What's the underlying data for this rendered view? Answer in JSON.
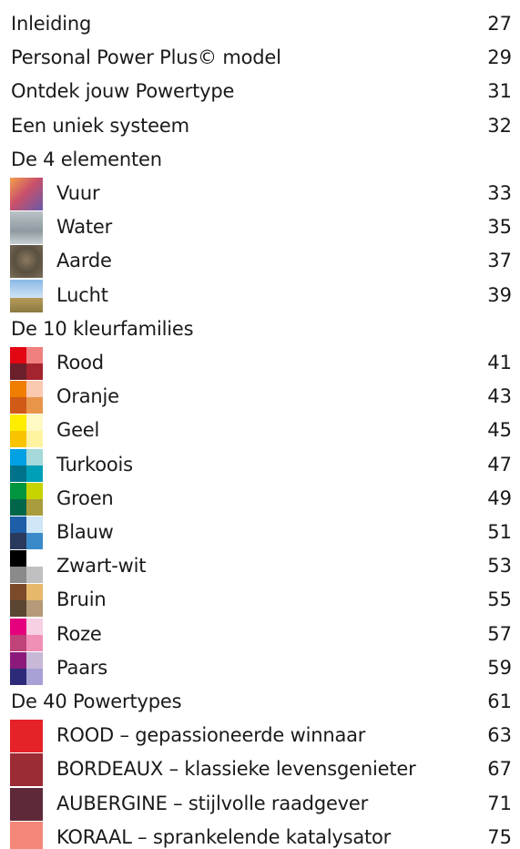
{
  "entries": [
    {
      "label": "Inleiding",
      "page": 27
    },
    {
      "label": "Personal Power Plus© model",
      "page": 29
    },
    {
      "label": "Ontdek jouw Powertype",
      "page": 31
    },
    {
      "label": "Een uniek systeem",
      "page": 32
    },
    {
      "label": "De 4 elementen"
    },
    {
      "label": "Vuur",
      "page": 33
    },
    {
      "label": "Water",
      "page": 35
    },
    {
      "label": "Aarde",
      "page": 37
    },
    {
      "label": "Lucht",
      "page": 39
    },
    {
      "label": "De 10 kleurfamilies"
    },
    {
      "label": "Rood",
      "page": 41
    },
    {
      "label": "Oranje",
      "page": 43
    },
    {
      "label": "Geel",
      "page": 45
    },
    {
      "label": "Turkoois",
      "page": 47
    },
    {
      "label": "Groen",
      "page": 49
    },
    {
      "label": "Blauw",
      "page": 51
    },
    {
      "label": "Zwart-wit",
      "page": 53
    },
    {
      "label": "Bruin",
      "page": 55
    },
    {
      "label": "Roze",
      "page": 57
    },
    {
      "label": "Paars",
      "page": 59
    },
    {
      "label": "De 40 Powertypes",
      "page": 61
    },
    {
      "label": "ROOD – gepassioneerde winnaar",
      "page": 63
    },
    {
      "label": "BORDEAUX – klassieke levensgenieter",
      "page": 67
    },
    {
      "label": "AUBERGINE – stijlvolle raadgever",
      "page": 71
    },
    {
      "label": "KORAAL – sprankelende katalysator",
      "page": 75
    }
  ]
}
